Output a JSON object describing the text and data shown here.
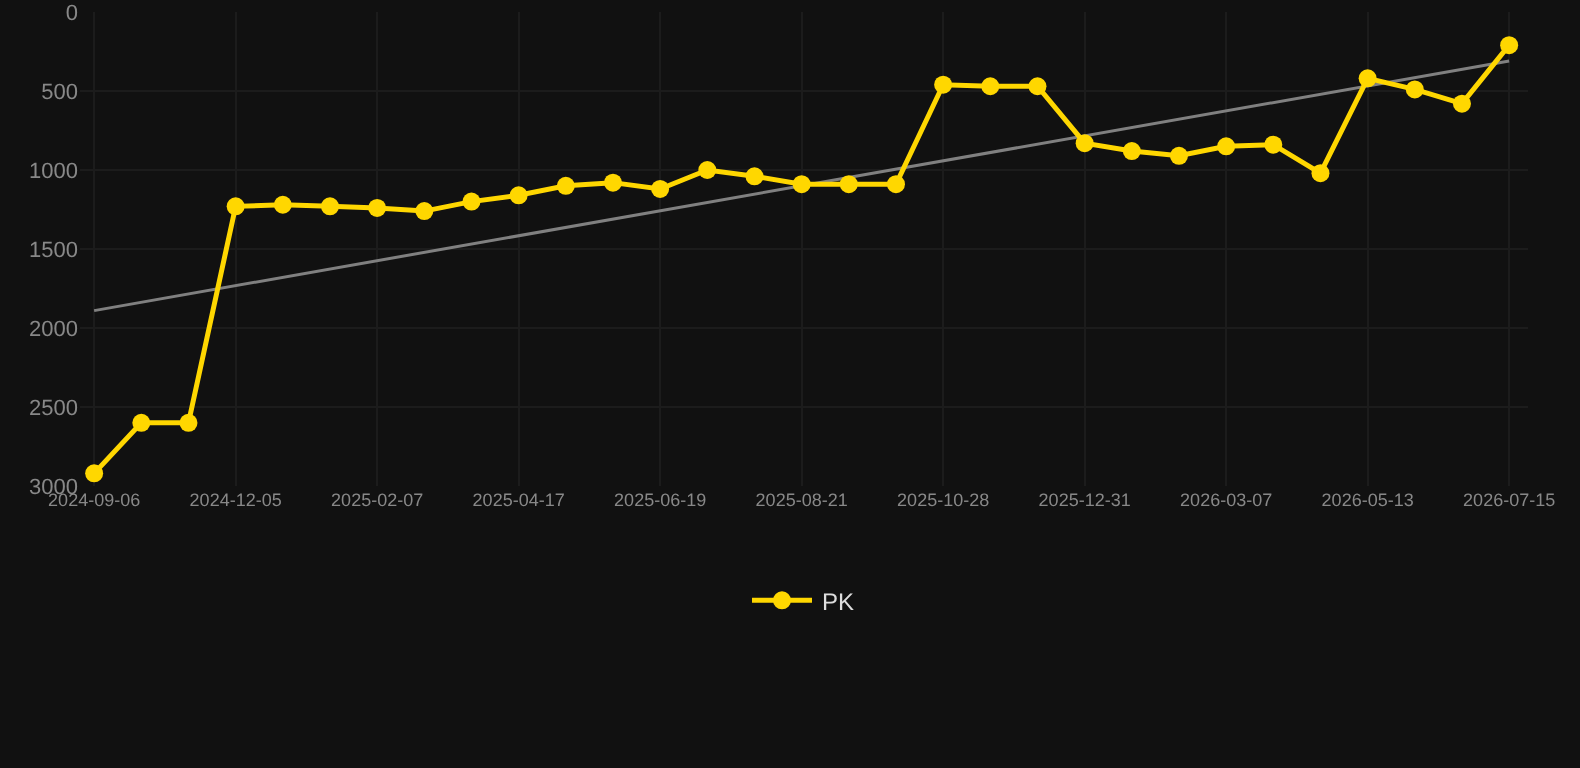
{
  "chart_data": {
    "type": "line",
    "categories": [
      "2024-09-06",
      null,
      null,
      "2024-12-05",
      null,
      null,
      "2025-02-07",
      null,
      null,
      "2025-04-17",
      null,
      null,
      "2025-06-19",
      null,
      null,
      "2025-08-21",
      null,
      null,
      "2025-10-28",
      null,
      null,
      "2025-12-31",
      null,
      null,
      "2026-03-07",
      null,
      null,
      "2026-05-13",
      null,
      null,
      "2026-07-15"
    ],
    "series": [
      {
        "name": "PK",
        "color": "#ffd700",
        "marker": "circle",
        "values": [
          2920,
          2600,
          2600,
          1230,
          1220,
          1230,
          1240,
          1260,
          1200,
          1160,
          1100,
          1080,
          1120,
          1000,
          1040,
          1090,
          1090,
          1090,
          460,
          470,
          470,
          830,
          880,
          910,
          850,
          840,
          1020,
          420,
          490,
          580,
          210
        ]
      },
      {
        "type": "line",
        "color": "#808080",
        "marker": "none",
        "values": [
          1890,
          null,
          null,
          null,
          null,
          null,
          null,
          null,
          null,
          null,
          null,
          null,
          null,
          null,
          null,
          null,
          null,
          null,
          null,
          null,
          null,
          null,
          null,
          null,
          null,
          null,
          null,
          null,
          null,
          null,
          310
        ]
      }
    ],
    "ylim": [
      3000,
      0
    ],
    "yticks": [
      0,
      500,
      1000,
      1500,
      2000,
      2500,
      3000
    ],
    "grid": true,
    "legend": "bottom"
  }
}
